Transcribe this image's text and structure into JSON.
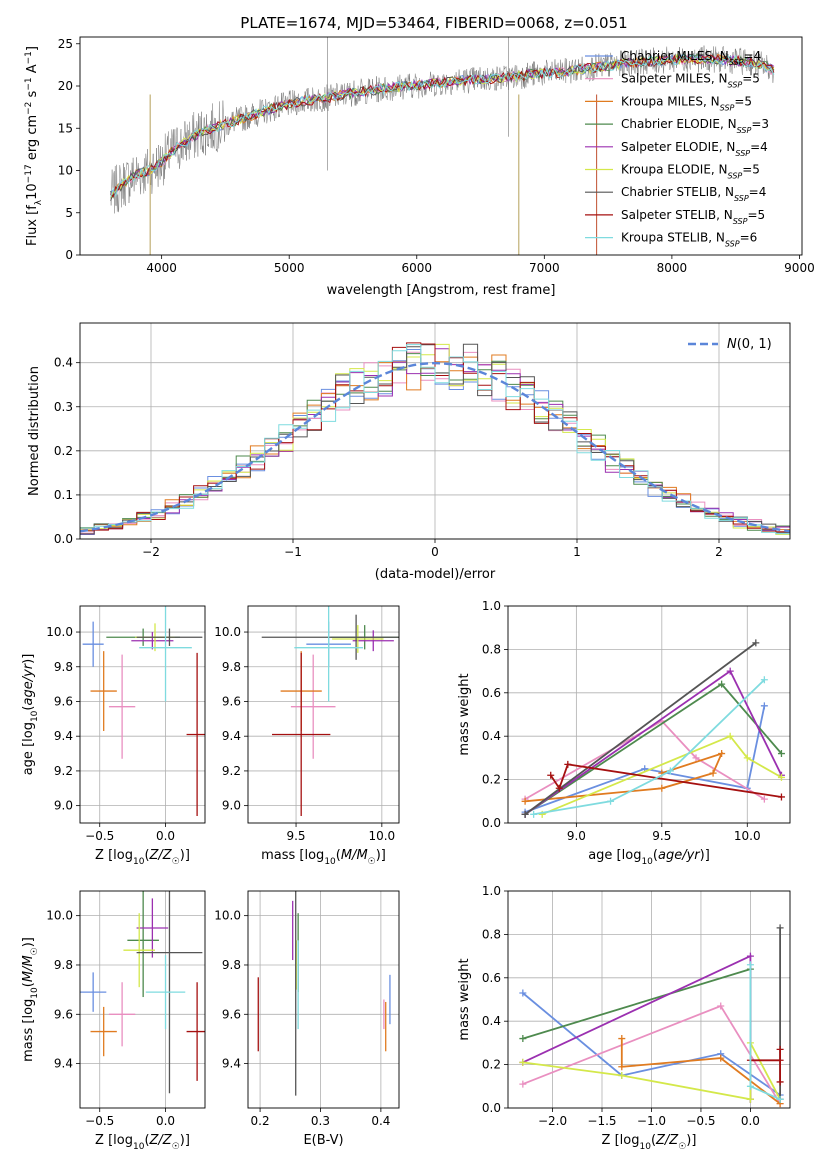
{
  "figure_title": "PLATE=1674, MJD=53464, FIBERID=0068, z=0.051",
  "colors": {
    "Chabrier MILES": "#6a8fe0",
    "Salpeter MILES": "#e98fc0",
    "Kroupa MILES": "#e07b20",
    "Chabrier ELODIE": "#4e8a4e",
    "Salpeter ELODIE": "#9b30b0",
    "Kroupa ELODIE": "#d4e84a",
    "Chabrier STELIB": "#555555",
    "Salpeter STELIB": "#a51010",
    "Kroupa STELIB": "#7fdbdf",
    "spectrum": "#777777"
  },
  "chart_data": [
    {
      "id": "spectrum",
      "type": "line",
      "title": "PLATE=1674, MJD=53464, FIBERID=0068, z=0.051",
      "xlabel": "wavelength [Angstrom, rest frame]",
      "ylabel": "Flux [f_λ 10^-17 erg cm^-2 s^-1 A^-1]",
      "xlim": [
        3360,
        9020
      ],
      "ylim": [
        0,
        25.8
      ],
      "xticks": [
        4000,
        5000,
        6000,
        7000,
        8000,
        9000
      ],
      "yticks": [
        0,
        5,
        10,
        15,
        20,
        25
      ],
      "continuum": [
        [
          3600,
          7
        ],
        [
          3700,
          8.5
        ],
        [
          3800,
          9.5
        ],
        [
          3900,
          10
        ],
        [
          4000,
          11
        ],
        [
          4100,
          12.5
        ],
        [
          4200,
          13.5
        ],
        [
          4300,
          14.5
        ],
        [
          4500,
          15.5
        ],
        [
          4700,
          16.5
        ],
        [
          4900,
          17.5
        ],
        [
          5100,
          18.2
        ],
        [
          5300,
          18.6
        ],
        [
          5500,
          19.2
        ],
        [
          5700,
          19.6
        ],
        [
          5900,
          20.0
        ],
        [
          6100,
          20.2
        ],
        [
          6300,
          20.6
        ],
        [
          6500,
          20.8
        ],
        [
          6700,
          21.0
        ],
        [
          6900,
          21.4
        ],
        [
          7100,
          21.6
        ],
        [
          7300,
          22.0
        ],
        [
          7500,
          22.4
        ],
        [
          7700,
          22.8
        ],
        [
          7900,
          23.0
        ],
        [
          8100,
          23.2
        ],
        [
          8300,
          23.2
        ],
        [
          8500,
          23.0
        ],
        [
          8700,
          22.6
        ],
        [
          8800,
          21.8
        ]
      ],
      "legend_placement": "upper right",
      "legend": [
        {
          "label": "Chabrier MILES, N_SSP=4",
          "sub": "SSP",
          "prefix": "Chabrier MILES, N",
          "suffix": "=4"
        },
        {
          "label": "Salpeter MILES, N_SSP=5",
          "sub": "SSP",
          "prefix": "Salpeter MILES, N",
          "suffix": "=5"
        },
        {
          "label": "Kroupa MILES, N_SSP=5",
          "sub": "SSP",
          "prefix": "Kroupa MILES, N",
          "suffix": "=5"
        },
        {
          "label": "Chabrier ELODIE, N_SSP=3",
          "sub": "SSP",
          "prefix": "Chabrier ELODIE, N",
          "suffix": "=3"
        },
        {
          "label": "Salpeter ELODIE, N_SSP=4",
          "sub": "SSP",
          "prefix": "Salpeter ELODIE, N",
          "suffix": "=4"
        },
        {
          "label": "Kroupa ELODIE, N_SSP=5",
          "sub": "SSP",
          "prefix": "Kroupa ELODIE, N",
          "suffix": "=5"
        },
        {
          "label": "Chabrier STELIB, N_SSP=4",
          "sub": "SSP",
          "prefix": "Chabrier STELIB, N",
          "suffix": "=4"
        },
        {
          "label": "Salpeter STELIB, N_SSP=5",
          "sub": "SSP",
          "prefix": "Salpeter STELIB, N",
          "suffix": "=5"
        },
        {
          "label": "Kroupa STELIB, N_SSP=6",
          "sub": "SSP",
          "prefix": "Kroupa STELIB, N",
          "suffix": "=6"
        }
      ]
    },
    {
      "id": "residuals",
      "type": "histogram",
      "xlabel": "(data-model)/error",
      "ylabel": "Normed distribution",
      "xlim": [
        -2.5,
        2.5
      ],
      "ylim": [
        0,
        0.49
      ],
      "xticks": [
        -2,
        -1,
        0,
        1,
        2
      ],
      "yticks": [
        0.0,
        0.1,
        0.2,
        0.3,
        0.4
      ],
      "bin_width": 0.1,
      "reference_label": "N(0,1)",
      "reference_color": "#5b86d9",
      "legend_placement": "upper right",
      "grid": true
    },
    {
      "id": "age_vs_Z",
      "type": "errorbar",
      "xlabel": "Z [log10(Z/Z☉)]",
      "ylabel": "age [log10(age/yr)]",
      "xlim": [
        -0.65,
        0.3
      ],
      "ylim": [
        8.9,
        10.15
      ],
      "xticks": [
        -0.5,
        0.0
      ],
      "yticks": [
        9.0,
        9.2,
        9.4,
        9.6,
        9.8,
        10.0
      ],
      "points": [
        {
          "name": "Chabrier MILES",
          "x": -0.55,
          "xerr": 0.08,
          "y": 9.93,
          "yerr": 0.13
        },
        {
          "name": "Salpeter MILES",
          "x": -0.33,
          "xerr": 0.1,
          "y": 9.57,
          "yerr": 0.3
        },
        {
          "name": "Kroupa MILES",
          "x": -0.47,
          "xerr": 0.1,
          "y": 9.66,
          "yerr": 0.23
        },
        {
          "name": "Chabrier ELODIE",
          "x": -0.17,
          "xerr": 0.28,
          "y": 9.97,
          "yerr": 0.05
        },
        {
          "name": "Salpeter ELODIE",
          "x": -0.1,
          "xerr": 0.16,
          "y": 9.95,
          "yerr": 0.05
        },
        {
          "name": "Kroupa ELODIE",
          "x": -0.08,
          "xerr": 0.15,
          "y": 9.97,
          "yerr": 0.08
        },
        {
          "name": "Chabrier STELIB",
          "x": 0.03,
          "xerr": 0.25,
          "y": 9.97,
          "yerr": 0.05
        },
        {
          "name": "Salpeter STELIB",
          "x": 0.24,
          "xerr": 0.08,
          "y": 9.41,
          "yerr": 0.47
        },
        {
          "name": "Kroupa STELIB",
          "x": 0.0,
          "xerr": 0.2,
          "y": 9.91,
          "yerr": 0.31
        }
      ]
    },
    {
      "id": "age_vs_mass",
      "type": "errorbar",
      "xlabel": "mass [log10(M/M☉)]",
      "ylabel": "",
      "xlim": [
        9.22,
        10.1
      ],
      "ylim": [
        8.9,
        10.15
      ],
      "xticks": [
        9.5,
        10.0
      ],
      "yticks": [
        9.0,
        9.2,
        9.4,
        9.6,
        9.8,
        10.0
      ],
      "points": [
        {
          "name": "Chabrier MILES",
          "x": 9.69,
          "xerr": 0.13,
          "y": 9.93,
          "yerr": 0.13
        },
        {
          "name": "Salpeter MILES",
          "x": 9.6,
          "xerr": 0.13,
          "y": 9.57,
          "yerr": 0.3
        },
        {
          "name": "Kroupa MILES",
          "x": 9.53,
          "xerr": 0.12,
          "y": 9.66,
          "yerr": 0.23
        },
        {
          "name": "Chabrier ELODIE",
          "x": 9.9,
          "xerr": 0.2,
          "y": 9.97,
          "yerr": 0.07
        },
        {
          "name": "Salpeter ELODIE",
          "x": 9.95,
          "xerr": 0.12,
          "y": 9.95,
          "yerr": 0.06
        },
        {
          "name": "Kroupa ELODIE",
          "x": 9.86,
          "xerr": 0.15,
          "y": 9.96,
          "yerr": 0.08
        },
        {
          "name": "Chabrier STELIB",
          "x": 9.85,
          "xerr": 0.55,
          "y": 9.97,
          "yerr": 0.13
        },
        {
          "name": "Salpeter STELIB",
          "x": 9.53,
          "xerr": 0.17,
          "y": 9.41,
          "yerr": 0.47
        },
        {
          "name": "Kroupa STELIB",
          "x": 9.69,
          "xerr": 0.2,
          "y": 9.91,
          "yerr": 0.31
        }
      ]
    },
    {
      "id": "massweight_vs_age",
      "type": "line",
      "xlabel": "age [log10(age/yr)]",
      "ylabel": "mass weight",
      "xlim": [
        8.6,
        10.25
      ],
      "ylim": [
        0.0,
        1.0
      ],
      "xticks": [
        9.0,
        9.5,
        10.0
      ],
      "yticks": [
        0.0,
        0.2,
        0.4,
        0.6,
        0.8,
        1.0
      ],
      "series": [
        {
          "name": "Chabrier MILES",
          "points": [
            [
              8.7,
              0.05
            ],
            [
              9.4,
              0.25
            ],
            [
              10.0,
              0.16
            ],
            [
              10.1,
              0.54
            ]
          ]
        },
        {
          "name": "Salpeter MILES",
          "points": [
            [
              8.7,
              0.11
            ],
            [
              9.5,
              0.47
            ],
            [
              9.7,
              0.3
            ],
            [
              10.1,
              0.11
            ]
          ]
        },
        {
          "name": "Kroupa MILES",
          "points": [
            [
              8.7,
              0.1
            ],
            [
              9.5,
              0.16
            ],
            [
              9.8,
              0.23
            ],
            [
              9.85,
              0.32
            ],
            [
              9.5,
              0.23
            ]
          ]
        },
        {
          "name": "Chabrier ELODIE",
          "points": [
            [
              8.7,
              0.04
            ],
            [
              9.85,
              0.64
            ],
            [
              10.2,
              0.32
            ]
          ]
        },
        {
          "name": "Salpeter ELODIE",
          "points": [
            [
              8.7,
              0.04
            ],
            [
              9.9,
              0.7
            ],
            [
              10.2,
              0.22
            ]
          ]
        },
        {
          "name": "Kroupa ELODIE",
          "points": [
            [
              8.8,
              0.04
            ],
            [
              9.9,
              0.4
            ],
            [
              10.0,
              0.3
            ],
            [
              10.2,
              0.21
            ]
          ]
        },
        {
          "name": "Chabrier STELIB",
          "points": [
            [
              8.7,
              0.04
            ],
            [
              10.05,
              0.83
            ]
          ]
        },
        {
          "name": "Salpeter STELIB",
          "points": [
            [
              8.85,
              0.22
            ],
            [
              8.9,
              0.16
            ],
            [
              8.95,
              0.27
            ],
            [
              10.2,
              0.12
            ]
          ]
        },
        {
          "name": "Kroupa STELIB",
          "points": [
            [
              8.75,
              0.04
            ],
            [
              9.2,
              0.1
            ],
            [
              9.55,
              0.24
            ],
            [
              10.1,
              0.66
            ]
          ]
        }
      ]
    },
    {
      "id": "mass_vs_Z",
      "type": "errorbar",
      "xlabel": "Z [log10(Z/Z☉)]",
      "ylabel": "mass [log10(M/M☉)]",
      "xlim": [
        -0.65,
        0.3
      ],
      "ylim": [
        9.22,
        10.1
      ],
      "xticks": [
        -0.5,
        0.0
      ],
      "yticks": [
        9.4,
        9.6,
        9.8,
        10.0
      ],
      "points": [
        {
          "name": "Chabrier MILES",
          "x": -0.55,
          "xerr": 0.1,
          "y": 9.69,
          "yerr": 0.08
        },
        {
          "name": "Salpeter MILES",
          "x": -0.33,
          "xerr": 0.1,
          "y": 9.6,
          "yerr": 0.13
        },
        {
          "name": "Kroupa MILES",
          "x": -0.47,
          "xerr": 0.1,
          "y": 9.53,
          "yerr": 0.1
        },
        {
          "name": "Chabrier ELODIE",
          "x": -0.17,
          "xerr": 0.12,
          "y": 9.9,
          "yerr": 0.23
        },
        {
          "name": "Salpeter ELODIE",
          "x": -0.1,
          "xerr": 0.12,
          "y": 9.95,
          "yerr": 0.12
        },
        {
          "name": "Kroupa ELODIE",
          "x": -0.2,
          "xerr": 0.12,
          "y": 9.86,
          "yerr": 0.15
        },
        {
          "name": "Chabrier STELIB",
          "x": 0.03,
          "xerr": 0.25,
          "y": 9.85,
          "yerr": 0.57
        },
        {
          "name": "Salpeter STELIB",
          "x": 0.24,
          "xerr": 0.08,
          "y": 9.53,
          "yerr": 0.2
        },
        {
          "name": "Kroupa STELIB",
          "x": 0.0,
          "xerr": 0.15,
          "y": 9.69,
          "yerr": 0.15
        }
      ]
    },
    {
      "id": "mass_vs_EBV",
      "type": "errorbar",
      "xlabel": "E(B-V)",
      "ylabel": "",
      "xlim": [
        0.18,
        0.43
      ],
      "ylim": [
        9.22,
        10.1
      ],
      "xticks": [
        0.2,
        0.3,
        0.4
      ],
      "yticks": [
        9.4,
        9.6,
        9.8,
        10.0
      ],
      "points": [
        {
          "name": "Chabrier MILES",
          "x": 0.415,
          "xerr": 0.0,
          "y": 9.66,
          "yerr": 0.1
        },
        {
          "name": "Salpeter MILES",
          "x": 0.405,
          "xerr": 0.0,
          "y": 9.6,
          "yerr": 0.06
        },
        {
          "name": "Kroupa MILES",
          "x": 0.408,
          "xerr": 0.0,
          "y": 9.55,
          "yerr": 0.1
        },
        {
          "name": "Chabrier ELODIE",
          "x": 0.263,
          "xerr": 0.0,
          "y": 9.85,
          "yerr": 0.16
        },
        {
          "name": "Salpeter ELODIE",
          "x": 0.254,
          "xerr": 0.0,
          "y": 9.94,
          "yerr": 0.12
        },
        {
          "name": "Kroupa ELODIE",
          "x": 0.26,
          "xerr": 0.0,
          "y": 9.8,
          "yerr": 0.1
        },
        {
          "name": "Chabrier STELIB",
          "x": 0.259,
          "xerr": 0.0,
          "y": 9.72,
          "yerr": 0.45
        },
        {
          "name": "Salpeter STELIB",
          "x": 0.197,
          "xerr": 0.0,
          "y": 9.6,
          "yerr": 0.15
        },
        {
          "name": "Kroupa STELIB",
          "x": 0.263,
          "xerr": 0.0,
          "y": 9.72,
          "yerr": 0.18
        }
      ]
    },
    {
      "id": "massweight_vs_Z",
      "type": "line",
      "xlabel": "Z [log10(Z/Z☉)]",
      "ylabel": "mass weight",
      "xlim": [
        -2.45,
        0.4
      ],
      "ylim": [
        0.0,
        1.0
      ],
      "xticks": [
        -2.0,
        -1.5,
        -1.0,
        -0.5,
        0.0
      ],
      "yticks": [
        0.0,
        0.2,
        0.4,
        0.6,
        0.8,
        1.0
      ],
      "series": [
        {
          "name": "Chabrier MILES",
          "points": [
            [
              -2.3,
              0.53
            ],
            [
              -1.3,
              0.15
            ],
            [
              -0.3,
              0.25
            ],
            [
              0.3,
              0.06
            ]
          ]
        },
        {
          "name": "Salpeter MILES",
          "points": [
            [
              -2.3,
              0.11
            ],
            [
              -0.3,
              0.47
            ],
            [
              0.3,
              0.02
            ]
          ]
        },
        {
          "name": "Kroupa MILES",
          "points": [
            [
              -1.3,
              0.32
            ],
            [
              -1.3,
              0.19
            ],
            [
              -0.3,
              0.23
            ],
            [
              0.3,
              0.02
            ]
          ]
        },
        {
          "name": "Chabrier ELODIE",
          "points": [
            [
              -2.3,
              0.32
            ],
            [
              0.0,
              0.64
            ],
            [
              0.0,
              0.04
            ]
          ]
        },
        {
          "name": "Salpeter ELODIE",
          "points": [
            [
              -2.3,
              0.21
            ],
            [
              0.0,
              0.7
            ],
            [
              0.0,
              0.04
            ]
          ]
        },
        {
          "name": "Kroupa ELODIE",
          "points": [
            [
              -2.3,
              0.21
            ],
            [
              -1.3,
              0.15
            ],
            [
              0.0,
              0.04
            ],
            [
              0.0,
              0.3
            ],
            [
              0.3,
              0.04
            ]
          ]
        },
        {
          "name": "Chabrier STELIB",
          "points": [
            [
              0.3,
              0.83
            ],
            [
              0.3,
              0.04
            ]
          ]
        },
        {
          "name": "Salpeter STELIB",
          "points": [
            [
              0.0,
              0.22
            ],
            [
              0.3,
              0.22
            ],
            [
              0.3,
              0.27
            ],
            [
              0.3,
              0.12
            ]
          ]
        },
        {
          "name": "Kroupa STELIB",
          "points": [
            [
              0.0,
              0.66
            ],
            [
              0.0,
              0.1
            ],
            [
              0.3,
              0.04
            ]
          ]
        }
      ]
    }
  ]
}
